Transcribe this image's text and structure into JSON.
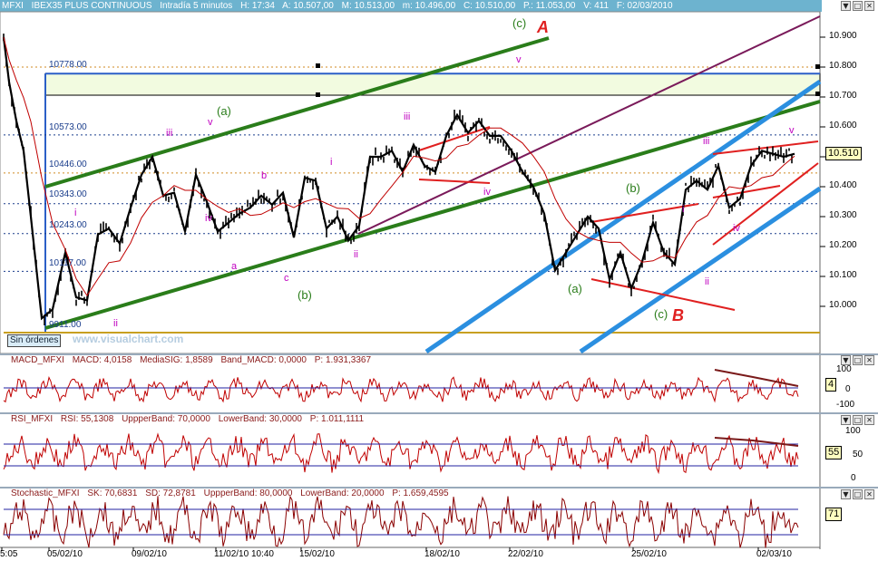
{
  "header": {
    "symbol": "MFXI",
    "title": "IBEX35 PLUS CONTINUOUS",
    "interval": "Intradía 5 minutos",
    "items": [
      "H: 17:34",
      "A: 10.507,00",
      "M: 10.513,00",
      "m: 10.496,00",
      "C: 10.510,00",
      "P.: 11.053,00",
      "V: 411",
      "F: 02/03/2010"
    ]
  },
  "panel_controls": [
    "▼",
    "□",
    "✕"
  ],
  "price": {
    "last": "10.510",
    "level_labels": [
      "10778.00",
      "10573.00",
      "10446.00",
      "10343.00",
      "10243.00",
      "10117.00",
      "9911.00"
    ],
    "sin_ordenes": "Sin órdenes",
    "watermark": "www.visualchart.com"
  },
  "wave_labels": {
    "A": "A",
    "B": "B",
    "c_green_top": "(c)",
    "a_green_1": "(a)",
    "b_green_1": "(b)",
    "a_green_2": "(a)",
    "b_green_2": "(b)",
    "c_green_2": "(c)",
    "i_1": "i",
    "ii_1": "ii",
    "iii_1": "iii",
    "iv_1": "iv",
    "v_1": "v",
    "a_small": "a",
    "b_small": "b",
    "c_small": "c",
    "i_2": "i",
    "ii_2": "ii",
    "iii_2": "iii",
    "iv_2": "iv",
    "v_2": "v",
    "i_3": "i",
    "ii_3": "ii",
    "iii_3": "iii",
    "iv_3": "iv",
    "v_3": "v"
  },
  "macd": {
    "items": [
      "MACD_MFXI",
      "MACD: 4,0158",
      "MediaSIG: 1,8589",
      "Band_MACD: 0,0000",
      "P: 1.931,3367"
    ],
    "badge": "4",
    "ylabels": [
      "100",
      "0",
      "-100"
    ]
  },
  "rsi": {
    "items": [
      "RSI_MFXI",
      "RSI: 55,1308",
      "UppperBand: 70,0000",
      "LowerBand: 30,0000",
      "P: 1.011,1111"
    ],
    "badge": "55",
    "ylabels": [
      "100",
      "50",
      "0"
    ]
  },
  "stoch": {
    "items": [
      "Stochastic_MFXI",
      "SK: 70,6831",
      "SD: 72,8781",
      "UppperBand: 80,0000",
      "LowerBand: 20,0000",
      "P: 1.659,4595"
    ],
    "badge": "71",
    "ylabels": []
  },
  "colors": {
    "bg": "#ffffff",
    "candle": "#000000",
    "ma": "#c00000",
    "green_channel": "#2a7d1a",
    "blue_channel": "#2b8fe0",
    "purple": "#7a1a5a",
    "red_lines": "#e02020",
    "wave_magenta": "#c000c0",
    "macd": "#2020a0",
    "rsi": "#c00000",
    "stoch": "#8a0000"
  },
  "chart_data": {
    "type": "line",
    "title": "IBEX35 PLUS CONTINUOUS - Intradía 5 minutos",
    "xlabel": "",
    "ylabel": "",
    "x_labels": [
      "5:05",
      "05/02/10",
      "09/02/10",
      "11/02/10 10:40",
      "15/02/10",
      "18/02/10",
      "22/02/10",
      "25/02/10",
      "02/03/10"
    ],
    "y_ticks": [
      10900,
      10800,
      10700,
      10600,
      10500,
      10400,
      10300,
      10200,
      10100,
      10000
    ],
    "ylim": [
      9900,
      10950
    ],
    "grid": false,
    "series": [
      {
        "name": "MFXI",
        "x_index": [
          0,
          6,
          14,
          22,
          30,
          42,
          54,
          68,
          80,
          92,
          104,
          116,
          128,
          140,
          152,
          164,
          176,
          188,
          200,
          212,
          224,
          236,
          248,
          260,
          272,
          284,
          296,
          308,
          320,
          332,
          344,
          356,
          368,
          380,
          392,
          404,
          416,
          428,
          440,
          452,
          464,
          476,
          488,
          500,
          512,
          524,
          536,
          548,
          560,
          572,
          584,
          596,
          608,
          620,
          632,
          644,
          656,
          668,
          680,
          692,
          704,
          716,
          728,
          740,
          752,
          764,
          776,
          788,
          800,
          812,
          824,
          836,
          848,
          860,
          872
        ],
        "values": [
          10900,
          10750,
          10620,
          10520,
          10300,
          9960,
          9990,
          10180,
          10030,
          10020,
          10240,
          10260,
          10210,
          10330,
          10440,
          10500,
          10370,
          10380,
          10250,
          10440,
          10350,
          10250,
          10280,
          10310,
          10330,
          10370,
          10340,
          10380,
          10230,
          10430,
          10420,
          10260,
          10300,
          10220,
          10270,
          10500,
          10500,
          10520,
          10450,
          10540,
          10470,
          10450,
          10570,
          10640,
          10580,
          10620,
          10570,
          10570,
          10520,
          10450,
          10400,
          10310,
          10120,
          10180,
          10240,
          10300,
          10260,
          10090,
          10180,
          10060,
          10150,
          10280,
          10180,
          10140,
          10390,
          10420,
          10390,
          10470,
          10330,
          10360,
          10470,
          10520,
          10510,
          10500,
          10510
        ]
      }
    ]
  }
}
